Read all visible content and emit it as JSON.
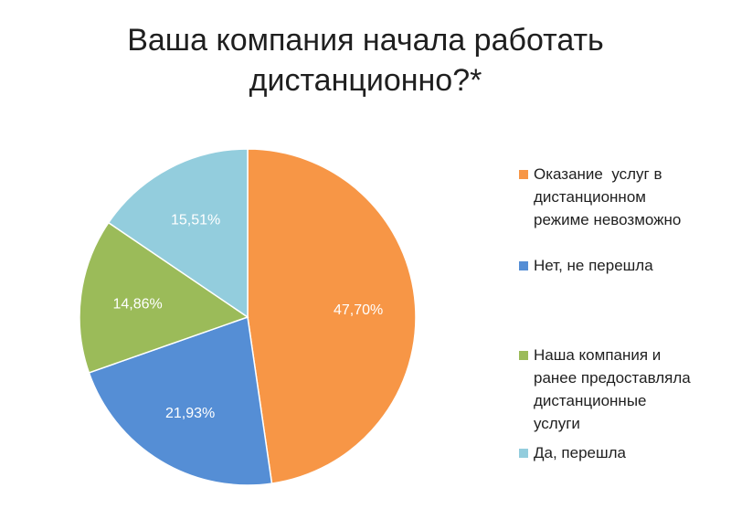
{
  "chart_data": {
    "type": "pie",
    "title": "Ваша компания начала работать дистанционно?*",
    "title_lines": [
      "Ваша компания начала работать",
      "дистанционно?*"
    ],
    "series": [
      {
        "name": "Оказание услуг в дистанционном режиме невозможно",
        "value": 47.7,
        "label": "47,70%",
        "color": "#F79646",
        "legend_lines": [
          "Оказание  услуг в",
          "дистанционном",
          "режиме невозможно"
        ]
      },
      {
        "name": "Нет, не перешла",
        "value": 21.93,
        "label": "21,93%",
        "color": "#558ED5",
        "legend_lines": [
          "Нет, не перешла"
        ]
      },
      {
        "name": "Наша компания и ранее предоставляла дистанционные услуги",
        "value": 14.86,
        "label": "14,86%",
        "color": "#9BBB59",
        "legend_lines": [
          "Наша компания и",
          "ранее предоставляла",
          "дистанционные",
          "услуги"
        ]
      },
      {
        "name": "Да, перешла",
        "value": 15.51,
        "label": "15,51%",
        "color": "#93CDDD",
        "legend_lines": [
          "Да, перешла"
        ]
      }
    ],
    "legend_position": "right",
    "start_angle": "12 o'clock",
    "direction": "clockwise"
  }
}
